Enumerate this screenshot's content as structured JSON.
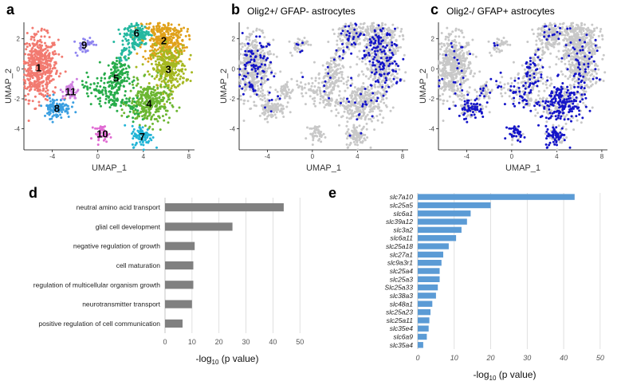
{
  "chart_data": [
    {
      "panel": "a",
      "type": "scatter",
      "title": "",
      "xlabel": "UMAP_1",
      "ylabel": "UMAP_2",
      "xticks": [
        "-4",
        "0",
        "4",
        "8"
      ],
      "yticks": [
        "2",
        "0",
        "-2",
        "-4"
      ],
      "xlim": [
        -6.5,
        8.5
      ],
      "ylim": [
        -5.4,
        3.1
      ],
      "clusters": [
        {
          "id": "1",
          "center": [
            -5.2,
            0.1
          ],
          "color": "#f27a70"
        },
        {
          "id": "2",
          "center": [
            5.8,
            1.9
          ],
          "color": "#e0a11a"
        },
        {
          "id": "3",
          "center": [
            6.2,
            0.0
          ],
          "color": "#a5b821"
        },
        {
          "id": "4",
          "center": [
            4.5,
            -2.3
          ],
          "color": "#6bb631"
        },
        {
          "id": "5",
          "center": [
            1.6,
            -0.6
          ],
          "color": "#27ac4a"
        },
        {
          "id": "6",
          "center": [
            3.4,
            2.4
          ],
          "color": "#25b8a0"
        },
        {
          "id": "7",
          "center": [
            3.9,
            -4.5
          ],
          "color": "#22b4d6"
        },
        {
          "id": "8",
          "center": [
            -3.6,
            -2.6
          ],
          "color": "#3a9fe1"
        },
        {
          "id": "9",
          "center": [
            -1.2,
            1.6
          ],
          "color": "#8f84f0"
        },
        {
          "id": "10",
          "center": [
            0.4,
            -4.3
          ],
          "color": "#e06bd3"
        },
        {
          "id": "11",
          "center": [
            -2.4,
            -1.5
          ],
          "color": "#cf7fe0"
        }
      ]
    },
    {
      "panel": "b",
      "type": "scatter",
      "title": "Olig2+/ GFAP- astrocytes",
      "xlabel": "UMAP_1",
      "ylabel": "UMAP_2",
      "xticks": [
        "-4",
        "0",
        "4",
        "8"
      ],
      "yticks": [
        "2",
        "0",
        "-2",
        "-4"
      ],
      "xlim": [
        -6.5,
        8.5
      ],
      "ylim": [
        -5.4,
        3.1
      ],
      "highlight_color": "#1414c8",
      "background_color": "#c8c8c8",
      "highlight_regions": [
        "cluster 1",
        "cluster 2",
        "cluster 3",
        "upper-right"
      ]
    },
    {
      "panel": "c",
      "type": "scatter",
      "title": "Olig2-/ GFAP+ astrocytes",
      "xlabel": "UMAP_1",
      "ylabel": "UMAP_2",
      "xticks": [
        "-4",
        "0",
        "4",
        "8"
      ],
      "yticks": [
        "2",
        "0",
        "-2",
        "-4"
      ],
      "xlim": [
        -6.5,
        8.5
      ],
      "ylim": [
        -5.4,
        3.1
      ],
      "highlight_color": "#1414c8",
      "background_color": "#c8c8c8",
      "highlight_regions": [
        "cluster 4",
        "cluster 7",
        "cluster 8",
        "cluster 10",
        "cluster 5"
      ]
    },
    {
      "panel": "d",
      "type": "bar",
      "orientation": "horizontal",
      "categories": [
        "neutral amino acid transport",
        "glial cell development",
        "negative regulation of growth",
        "cell maturation",
        "regulation of multicellular organism growth",
        "neurotransmitter transport",
        "positive regulation of cell communication"
      ],
      "values": [
        44,
        25,
        11,
        10.5,
        10.5,
        10,
        6.5
      ],
      "xticks": [
        "0",
        "10",
        "20",
        "30",
        "40",
        "50"
      ],
      "xlim": [
        0,
        52
      ],
      "xlabel_pre": "-log",
      "xlabel_sub": "10",
      "xlabel_post": " (p value)",
      "bar_color": "#808080",
      "grid": true
    },
    {
      "panel": "e",
      "type": "bar",
      "orientation": "horizontal",
      "categories": [
        "slc7a10",
        "slc25a5",
        "slc6a1",
        "slc39a12",
        "slc3a2",
        "slc6a11",
        "slc25a18",
        "slc27a1",
        "slc9a3r1",
        "slc25a4",
        "slc25a3",
        "Slc25a33",
        "slc38a3",
        "slc48a1",
        "slc25a23",
        "slc25a11",
        "slc35e4",
        "slc6a9",
        "slc35a4"
      ],
      "values": [
        43,
        20,
        14.5,
        13.5,
        12,
        10.5,
        8.5,
        7,
        6.5,
        6,
        6,
        5.5,
        5,
        4,
        3.5,
        3.2,
        3,
        2.5,
        1.5
      ],
      "xticks": [
        "0",
        "10",
        "20",
        "30",
        "40",
        "50"
      ],
      "xlim": [
        0,
        52
      ],
      "xlabel_pre": "-log",
      "xlabel_sub": "10",
      "xlabel_post": " (p value)",
      "bar_color": "#5b9bd5",
      "grid": true
    }
  ],
  "panel_labels": {
    "a": "a",
    "b": "b",
    "c": "c",
    "d": "d",
    "e": "e"
  }
}
